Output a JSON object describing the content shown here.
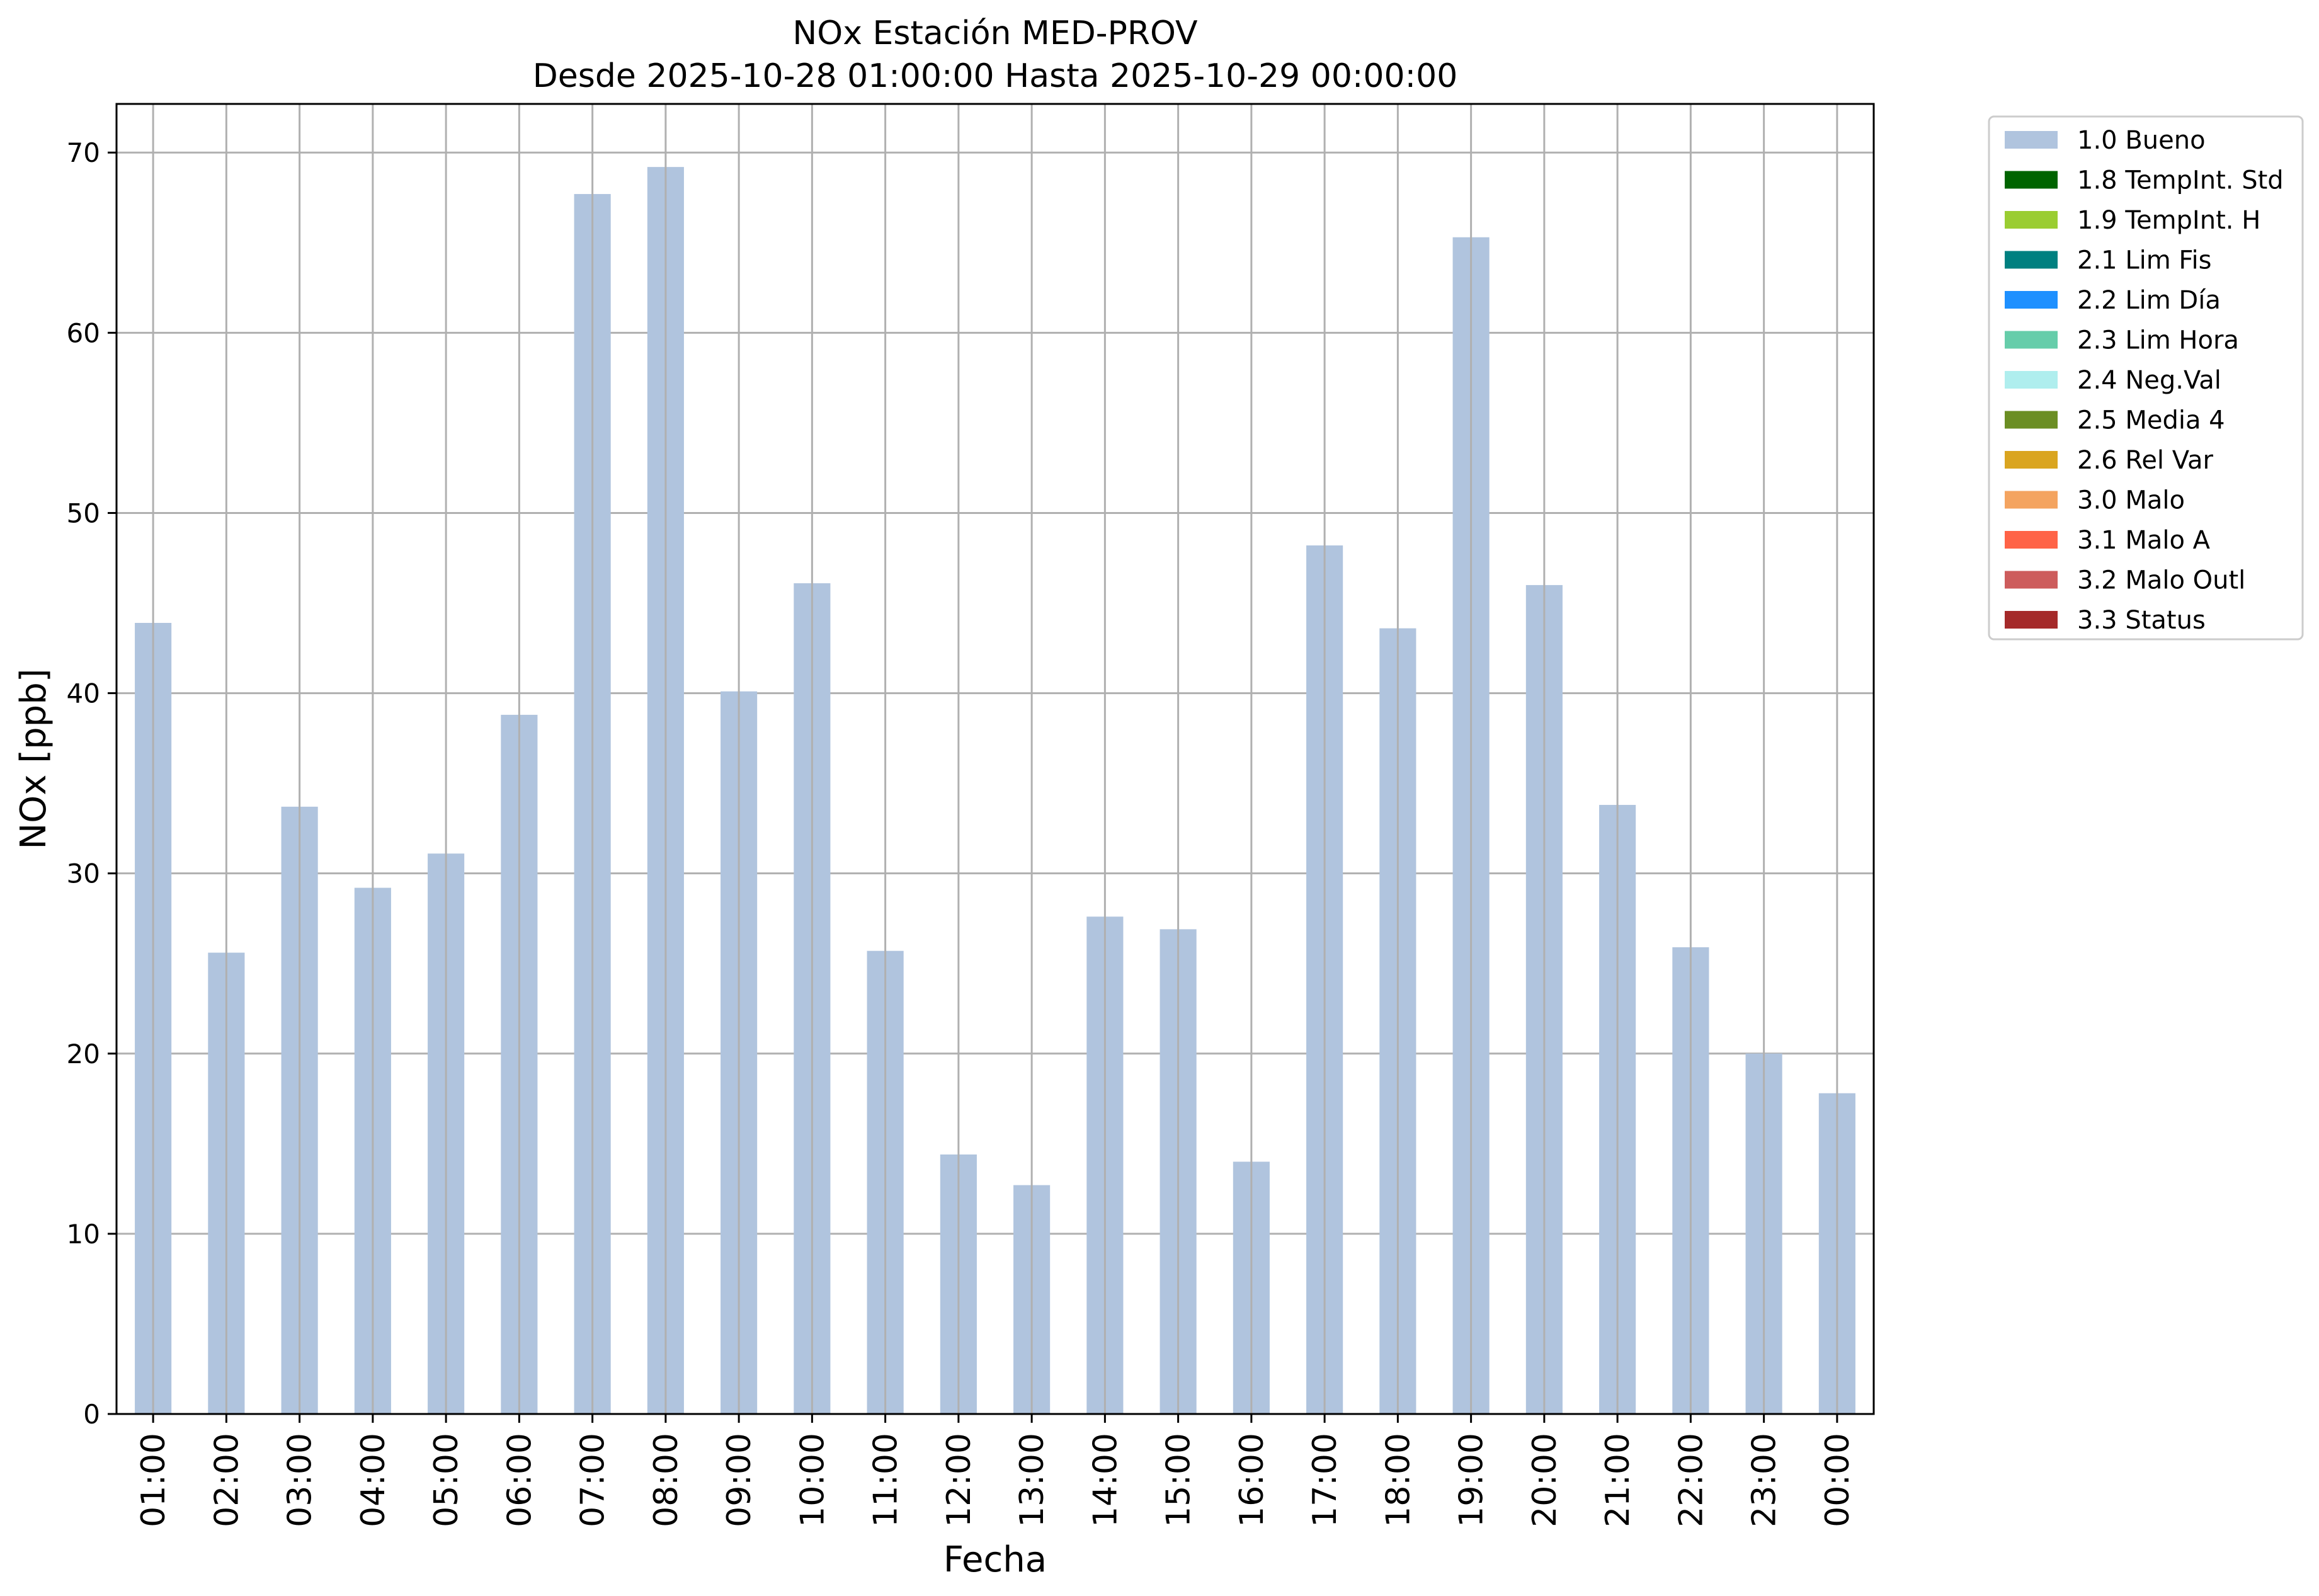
{
  "chart_data": {
    "type": "bar",
    "title": "NOx Estación MED-PROV",
    "subtitle": "Desde 2025-10-28 01:00:00 Hasta 2025-10-29 00:00:00",
    "xlabel": "Fecha",
    "ylabel": "NOx [ppb]",
    "ylim": [
      0,
      72.7
    ],
    "yticks": [
      0,
      10,
      20,
      30,
      40,
      50,
      60,
      70
    ],
    "grid": true,
    "legend_position": "outside-right",
    "bar_color": "#b0c4de",
    "categories": [
      "01:00",
      "02:00",
      "03:00",
      "04:00",
      "05:00",
      "06:00",
      "07:00",
      "08:00",
      "09:00",
      "10:00",
      "11:00",
      "12:00",
      "13:00",
      "14:00",
      "15:00",
      "16:00",
      "17:00",
      "18:00",
      "19:00",
      "20:00",
      "21:00",
      "22:00",
      "23:00",
      "00:00"
    ],
    "series": [
      {
        "name": "1.0 Bueno",
        "color": "#b0c4de",
        "values": [
          43.9,
          25.6,
          33.7,
          29.2,
          31.1,
          38.8,
          67.7,
          69.2,
          40.1,
          46.1,
          25.7,
          14.4,
          12.7,
          27.6,
          26.9,
          14.0,
          48.2,
          43.6,
          65.3,
          46.0,
          33.8,
          25.9,
          20.0,
          17.8
        ]
      }
    ],
    "legend": [
      {
        "label": "1.0 Bueno",
        "color": "#b0c4de"
      },
      {
        "label": "1.8 TempInt. Std",
        "color": "#006400"
      },
      {
        "label": "1.9 TempInt. H",
        "color": "#9acd32"
      },
      {
        "label": "2.1 Lim Fis",
        "color": "#008080"
      },
      {
        "label": "2.2 Lim Día",
        "color": "#1e90ff"
      },
      {
        "label": "2.3 Lim Hora",
        "color": "#66cdaa"
      },
      {
        "label": "2.4 Neg.Val",
        "color": "#afeeee"
      },
      {
        "label": "2.5 Media 4",
        "color": "#6b8e23"
      },
      {
        "label": "2.6 Rel Var",
        "color": "#daa520"
      },
      {
        "label": "3.0 Malo",
        "color": "#f4a460"
      },
      {
        "label": "3.1 Malo A",
        "color": "#ff6347"
      },
      {
        "label": "3.2 Malo Outl",
        "color": "#cd5c5c"
      },
      {
        "label": "3.3 Status",
        "color": "#a52a2a"
      }
    ]
  }
}
